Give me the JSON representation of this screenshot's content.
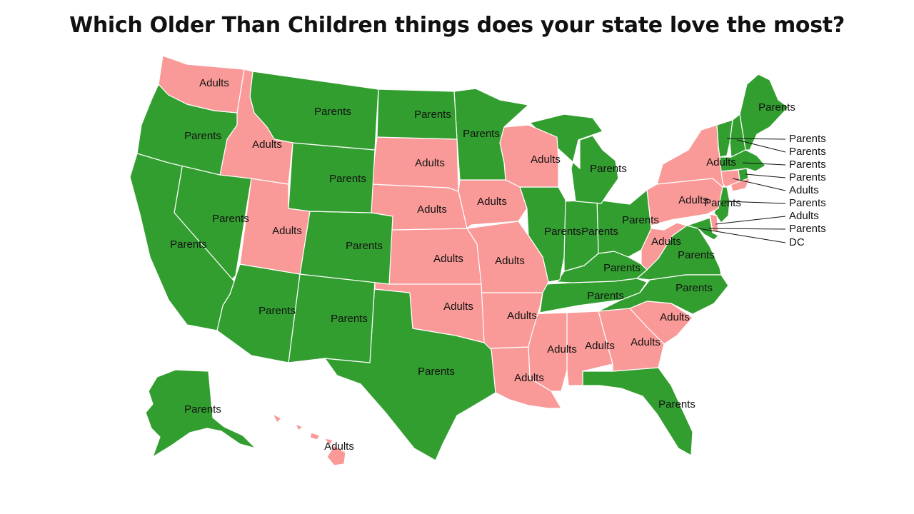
{
  "title": "Which Older Than Children things does your state love the most?",
  "colors": {
    "Parents": "#339e30",
    "Adults": "#f99a98"
  },
  "states": [
    {
      "id": "WA",
      "label": "Adults"
    },
    {
      "id": "OR",
      "label": "Parents"
    },
    {
      "id": "CA",
      "label": "Parents"
    },
    {
      "id": "ID",
      "label": "Adults"
    },
    {
      "id": "NV",
      "label": "Parents"
    },
    {
      "id": "MT",
      "label": "Parents"
    },
    {
      "id": "WY",
      "label": "Parents"
    },
    {
      "id": "UT",
      "label": "Adults"
    },
    {
      "id": "AZ",
      "label": "Parents"
    },
    {
      "id": "CO",
      "label": "Parents"
    },
    {
      "id": "NM",
      "label": "Parents"
    },
    {
      "id": "ND",
      "label": "Parents"
    },
    {
      "id": "SD",
      "label": "Adults"
    },
    {
      "id": "NE",
      "label": "Adults"
    },
    {
      "id": "KS",
      "label": "Adults"
    },
    {
      "id": "OK",
      "label": "Adults"
    },
    {
      "id": "TX",
      "label": "Parents"
    },
    {
      "id": "MN",
      "label": "Parents"
    },
    {
      "id": "IA",
      "label": "Adults"
    },
    {
      "id": "MO",
      "label": "Adults"
    },
    {
      "id": "AR",
      "label": "Adults"
    },
    {
      "id": "LA",
      "label": "Adults"
    },
    {
      "id": "WI",
      "label": "Adults"
    },
    {
      "id": "MI",
      "label": "Parents"
    },
    {
      "id": "IL",
      "label": "Parents"
    },
    {
      "id": "IN",
      "label": "Parents"
    },
    {
      "id": "OH",
      "label": "Parents"
    },
    {
      "id": "KY",
      "label": "Parents"
    },
    {
      "id": "TN",
      "label": "Parents"
    },
    {
      "id": "MS",
      "label": "Adults"
    },
    {
      "id": "AL",
      "label": "Adults"
    },
    {
      "id": "GA",
      "label": "Adults"
    },
    {
      "id": "FL",
      "label": "Parents"
    },
    {
      "id": "SC",
      "label": "Adults"
    },
    {
      "id": "NC",
      "label": "Parents"
    },
    {
      "id": "VA",
      "label": "Parents"
    },
    {
      "id": "WV",
      "label": "Adults"
    },
    {
      "id": "PA",
      "label": "Adults"
    },
    {
      "id": "NY",
      "label": "Adults"
    },
    {
      "id": "NJ",
      "label": "Parents"
    },
    {
      "id": "ME",
      "label": "Parents"
    },
    {
      "id": "AK",
      "label": "Parents"
    },
    {
      "id": "HI",
      "label": "Adults"
    }
  ],
  "callouts": [
    {
      "id": "VT",
      "label": "Parents"
    },
    {
      "id": "NH",
      "label": "Parents"
    },
    {
      "id": "MA",
      "label": "Parents"
    },
    {
      "id": "RI",
      "label": "Parents"
    },
    {
      "id": "CT",
      "label": "Adults"
    },
    {
      "id": "NJ2",
      "label": "Parents"
    },
    {
      "id": "DE",
      "label": "Adults"
    },
    {
      "id": "MD",
      "label": "Parents"
    },
    {
      "id": "DC",
      "label": "DC"
    }
  ]
}
